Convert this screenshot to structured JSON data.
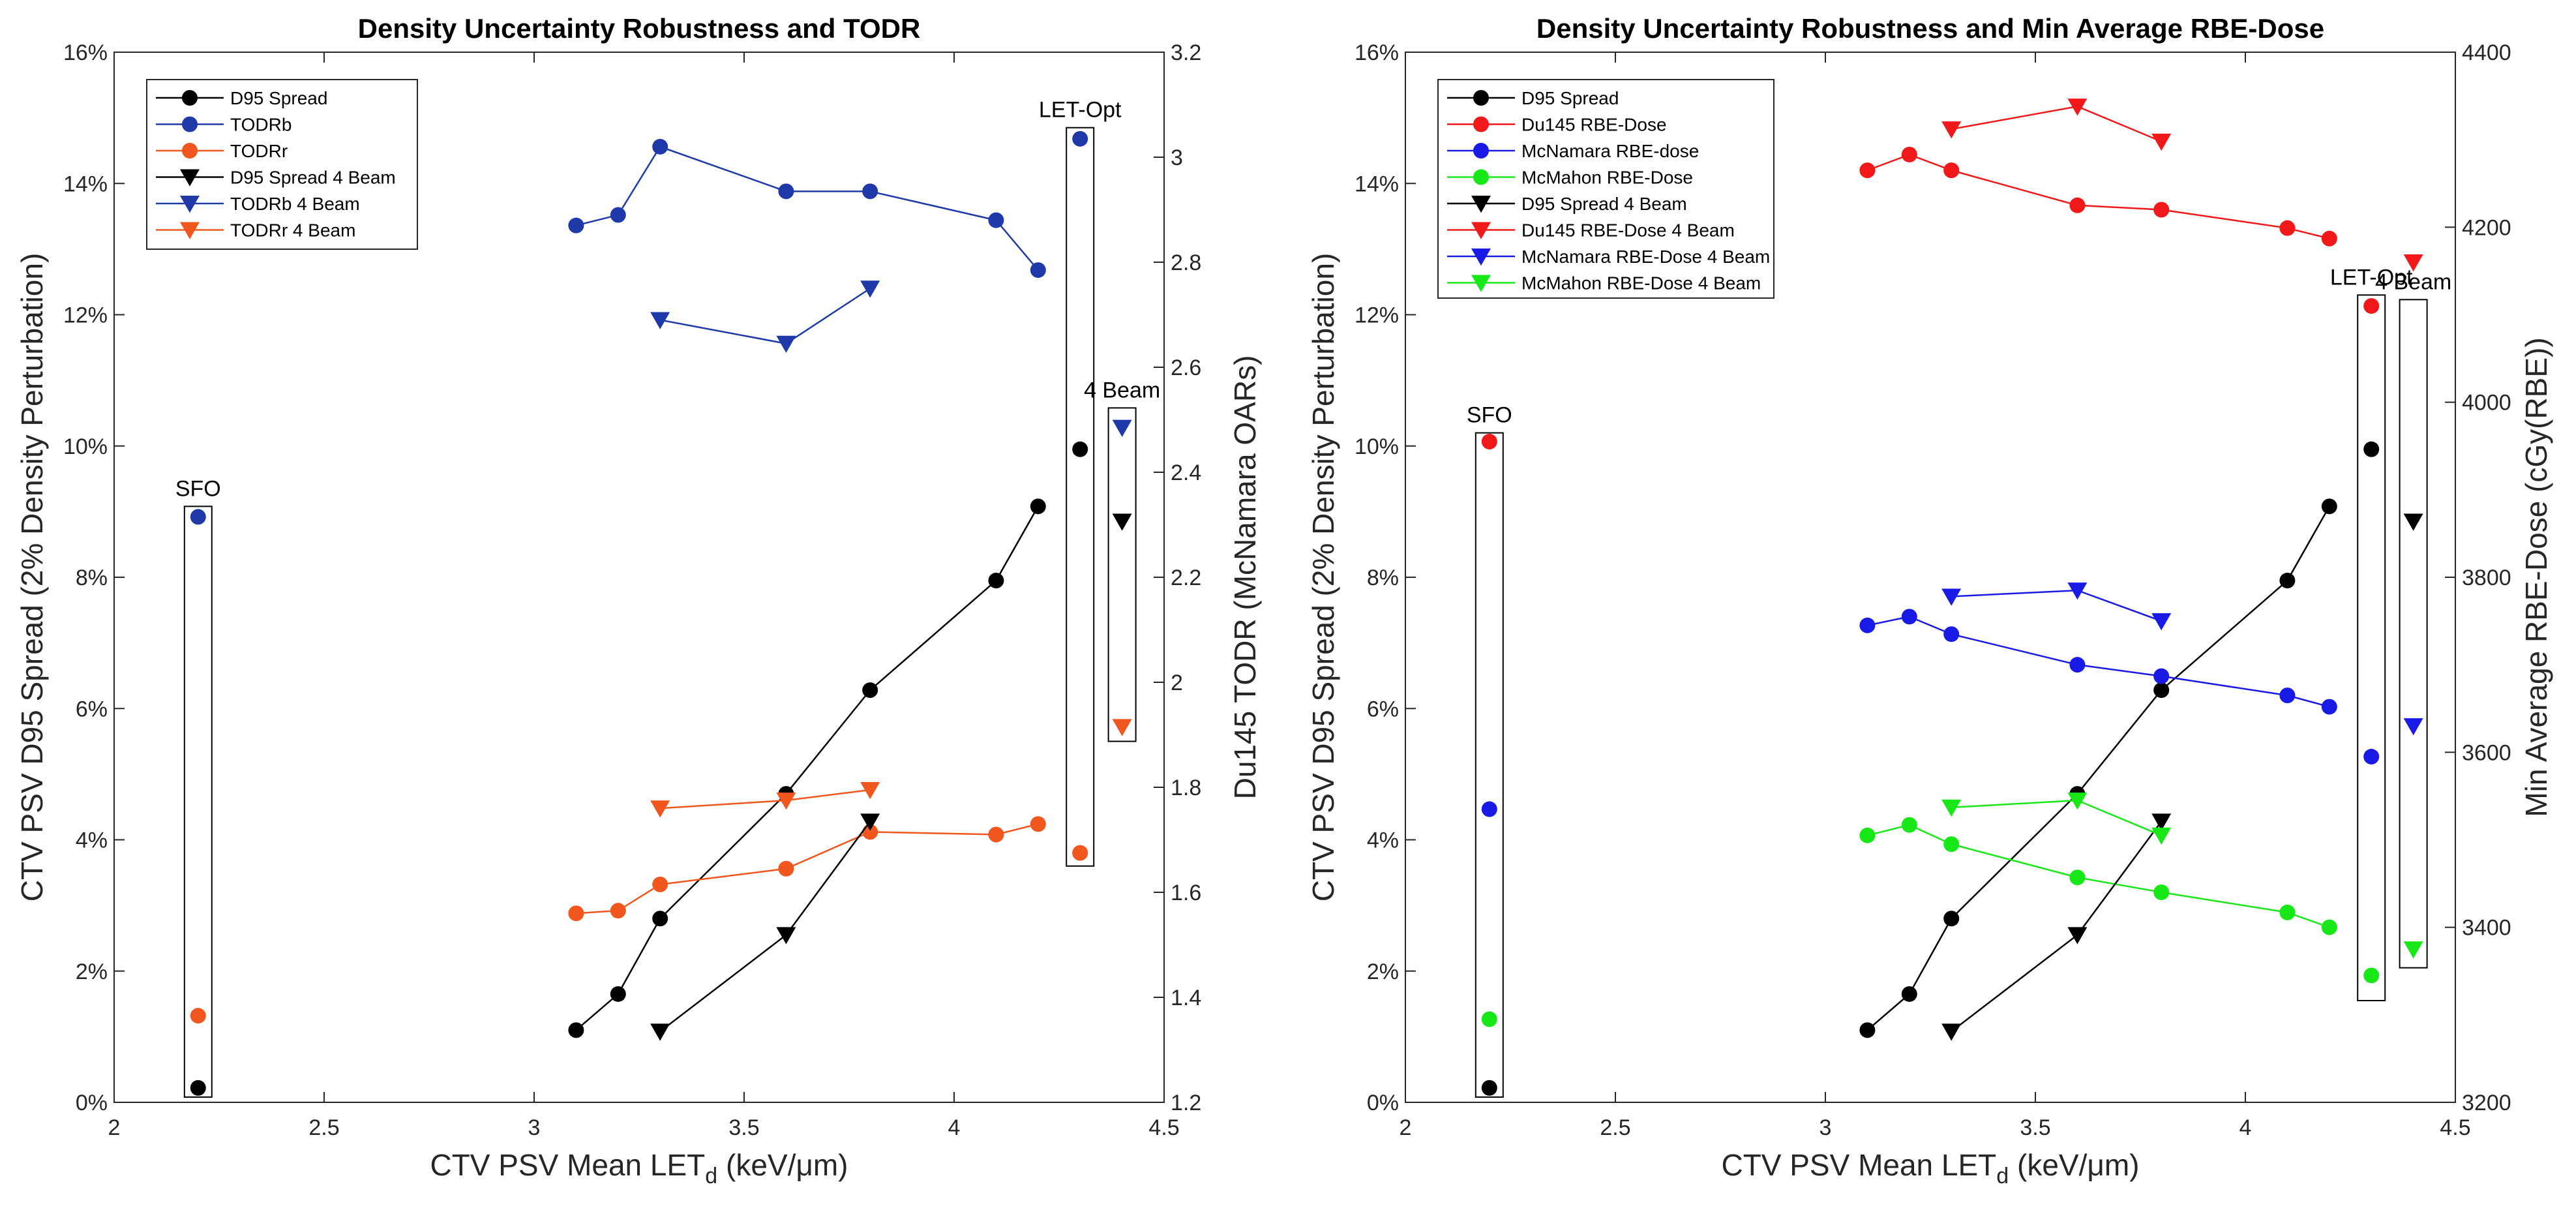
{
  "chart_data": [
    {
      "type": "line",
      "title": "Density Uncertainty Robustness and TODR",
      "xlabel": "CTV PSV Mean LET",
      "xlabel_sub": "d",
      "xlabel_unit": " (keV/μm)",
      "ylabel_left": "CTV PSV D95 Spread (2% Density Perturbation)",
      "ylabel_right": "Du145 TODR (McNamara OARs)",
      "xlim": [
        2,
        4.5
      ],
      "ylim_left": [
        0,
        16
      ],
      "ylim_right": [
        1.2,
        3.2
      ],
      "xticks": [
        2,
        2.5,
        3,
        3.5,
        4,
        4.5
      ],
      "xtick_labels": [
        "2",
        "2.5",
        "3",
        "3.5",
        "4",
        "4.5"
      ],
      "yticks_left": [
        0,
        2,
        4,
        6,
        8,
        10,
        12,
        14,
        16
      ],
      "ytick_labels_left": [
        "0%",
        "2%",
        "4%",
        "6%",
        "8%",
        "10%",
        "12%",
        "14%",
        "16%"
      ],
      "yticks_right": [
        1.2,
        1.4,
        1.6,
        1.8,
        2.0,
        2.2,
        2.4,
        2.6,
        2.8,
        3.0,
        3.2
      ],
      "ytick_labels_right": [
        "1.2",
        "1.4",
        "1.6",
        "1.8",
        "2",
        "2.2",
        "2.4",
        "2.6",
        "2.8",
        "3",
        "3.2"
      ],
      "legend_position": "top-left",
      "series": [
        {
          "name": "D95 Spread",
          "color": "#000000",
          "marker": "circle",
          "axis": "left",
          "x": [
            3.1,
            3.2,
            3.3,
            3.6,
            3.8,
            4.1,
            4.2
          ],
          "y": [
            1.1,
            1.65,
            2.8,
            4.7,
            6.28,
            7.95,
            9.08
          ]
        },
        {
          "name": "TODRb",
          "color": "#1f3aa8",
          "marker": "circle",
          "axis": "right",
          "x": [
            3.1,
            3.2,
            3.3,
            3.6,
            3.8,
            4.1,
            4.2
          ],
          "y": [
            2.87,
            2.89,
            3.02,
            2.935,
            2.935,
            2.88,
            2.785
          ]
        },
        {
          "name": "TODRr",
          "color": "#f0561e",
          "marker": "circle",
          "axis": "right",
          "x": [
            3.1,
            3.2,
            3.3,
            3.6,
            3.8,
            4.1,
            4.2
          ],
          "y": [
            1.56,
            1.565,
            1.615,
            1.645,
            1.715,
            1.71,
            1.73
          ]
        },
        {
          "name": "D95 Spread 4 Beam",
          "color": "#000000",
          "marker": "triangle-down",
          "axis": "left",
          "x": [
            3.3,
            3.6,
            3.8
          ],
          "y": [
            1.08,
            2.55,
            4.28
          ]
        },
        {
          "name": "TODRb 4 Beam",
          "color": "#1f3aa8",
          "marker": "triangle-down",
          "axis": "right",
          "x": [
            3.3,
            3.6,
            3.8
          ],
          "y": [
            2.69,
            2.645,
            2.75
          ]
        },
        {
          "name": "TODRr 4 Beam",
          "color": "#f0561e",
          "marker": "triangle-down",
          "axis": "right",
          "x": [
            3.3,
            3.6,
            3.8
          ],
          "y": [
            1.76,
            1.775,
            1.795
          ]
        }
      ],
      "isolated_points": [
        {
          "group": "SFO",
          "x": 2.2,
          "axis": "left",
          "y": 0.22,
          "color": "#000000",
          "marker": "circle"
        },
        {
          "group": "SFO",
          "x": 2.2,
          "axis": "right",
          "y": 2.315,
          "color": "#1f3aa8",
          "marker": "circle"
        },
        {
          "group": "SFO",
          "x": 2.2,
          "axis": "right",
          "y": 1.365,
          "color": "#f0561e",
          "marker": "circle"
        },
        {
          "group": "LET-Opt",
          "x": 4.3,
          "axis": "left",
          "y": 9.95,
          "color": "#000000",
          "marker": "circle"
        },
        {
          "group": "LET-Opt",
          "x": 4.3,
          "axis": "right",
          "y": 3.035,
          "color": "#1f3aa8",
          "marker": "circle"
        },
        {
          "group": "LET-Opt",
          "x": 4.3,
          "axis": "right",
          "y": 1.675,
          "color": "#f0561e",
          "marker": "circle"
        },
        {
          "group": "4 Beam",
          "x": 4.4,
          "axis": "left",
          "y": 8.85,
          "color": "#000000",
          "marker": "triangle-down"
        },
        {
          "group": "4 Beam",
          "x": 4.4,
          "axis": "right",
          "y": 2.485,
          "color": "#1f3aa8",
          "marker": "triangle-down"
        },
        {
          "group": "4 Beam",
          "x": 4.4,
          "axis": "right",
          "y": 1.915,
          "color": "#f0561e",
          "marker": "triangle-down"
        }
      ],
      "annotations": [
        {
          "text": "SFO",
          "box_x": 2.2,
          "box_y_left": [
            0.08,
            9.08
          ]
        },
        {
          "text": "LET-Opt",
          "box_x": 4.3,
          "box_y_left": [
            3.6,
            14.85
          ]
        },
        {
          "text": "4 Beam",
          "box_x": 4.4,
          "box_y_left": [
            5.5,
            10.58
          ]
        }
      ]
    },
    {
      "type": "line",
      "title": "Density Uncertainty Robustness and Min Average RBE-Dose",
      "xlabel": "CTV PSV Mean LET",
      "xlabel_sub": "d",
      "xlabel_unit": " (keV/μm)",
      "ylabel_left": "CTV PSV D95 Spread (2% Density Perturbation)",
      "ylabel_right": "Min Average RBE-Dose (cGy(RBE))",
      "xlim": [
        2,
        4.5
      ],
      "ylim_left": [
        0,
        16
      ],
      "ylim_right": [
        3200,
        4400
      ],
      "xticks": [
        2,
        2.5,
        3,
        3.5,
        4,
        4.5
      ],
      "xtick_labels": [
        "2",
        "2.5",
        "3",
        "3.5",
        "4",
        "4.5"
      ],
      "yticks_left": [
        0,
        2,
        4,
        6,
        8,
        10,
        12,
        14,
        16
      ],
      "ytick_labels_left": [
        "0%",
        "2%",
        "4%",
        "6%",
        "8%",
        "10%",
        "12%",
        "14%",
        "16%"
      ],
      "yticks_right": [
        3200,
        3400,
        3600,
        3800,
        4000,
        4200,
        4400
      ],
      "ytick_labels_right": [
        "3200",
        "3400",
        "3600",
        "3800",
        "4000",
        "4200",
        "4400"
      ],
      "legend_position": "top-left",
      "series": [
        {
          "name": "D95 Spread",
          "color": "#000000",
          "marker": "circle",
          "axis": "left",
          "x": [
            3.1,
            3.2,
            3.3,
            3.6,
            3.8,
            4.1,
            4.2
          ],
          "y": [
            1.1,
            1.65,
            2.8,
            4.7,
            6.28,
            7.95,
            9.08
          ]
        },
        {
          "name": "Du145 RBE-Dose",
          "color": "#f01818",
          "marker": "circle",
          "axis": "right",
          "x": [
            3.1,
            3.2,
            3.3,
            3.6,
            3.8,
            4.1,
            4.2
          ],
          "y": [
            4265,
            4283,
            4265,
            4225,
            4220,
            4199,
            4187
          ]
        },
        {
          "name": "McNamara RBE-dose",
          "color": "#1a1ae6",
          "marker": "circle",
          "axis": "right",
          "x": [
            3.1,
            3.2,
            3.3,
            3.6,
            3.8,
            4.1,
            4.2
          ],
          "y": [
            3745,
            3755,
            3735,
            3700,
            3687,
            3665,
            3652
          ]
        },
        {
          "name": "McMahon RBE-Dose",
          "color": "#18e818",
          "marker": "circle",
          "axis": "right",
          "x": [
            3.1,
            3.2,
            3.3,
            3.6,
            3.8,
            4.1,
            4.2
          ],
          "y": [
            3505,
            3517,
            3495,
            3457,
            3440,
            3417,
            3400
          ]
        },
        {
          "name": "D95 Spread 4 Beam",
          "color": "#000000",
          "marker": "triangle-down",
          "axis": "left",
          "x": [
            3.3,
            3.6,
            3.8
          ],
          "y": [
            1.08,
            2.55,
            4.28
          ]
        },
        {
          "name": "Du145 RBE-Dose 4 Beam",
          "color": "#f01818",
          "marker": "triangle-down",
          "axis": "right",
          "x": [
            3.3,
            3.6,
            3.8
          ],
          "y": [
            4312,
            4338,
            4298
          ]
        },
        {
          "name": "McNamara RBE-Dose 4 Beam",
          "color": "#1a1ae6",
          "marker": "triangle-down",
          "axis": "right",
          "x": [
            3.3,
            3.6,
            3.8
          ],
          "y": [
            3778,
            3785,
            3750
          ]
        },
        {
          "name": "McMahon RBE-Dose 4 Beam",
          "color": "#18e818",
          "marker": "triangle-down",
          "axis": "right",
          "x": [
            3.3,
            3.6,
            3.8
          ],
          "y": [
            3537,
            3545,
            3505
          ]
        }
      ],
      "isolated_points": [
        {
          "group": "SFO",
          "x": 2.2,
          "axis": "left",
          "y": 0.22,
          "color": "#000000",
          "marker": "circle"
        },
        {
          "group": "SFO",
          "x": 2.2,
          "axis": "right",
          "y": 3955,
          "color": "#f01818",
          "marker": "circle"
        },
        {
          "group": "SFO",
          "x": 2.2,
          "axis": "right",
          "y": 3535,
          "color": "#1a1ae6",
          "marker": "circle"
        },
        {
          "group": "SFO",
          "x": 2.2,
          "axis": "right",
          "y": 3295,
          "color": "#18e818",
          "marker": "circle"
        },
        {
          "group": "LET-Opt",
          "x": 4.3,
          "axis": "left",
          "y": 9.95,
          "color": "#000000",
          "marker": "circle"
        },
        {
          "group": "LET-Opt",
          "x": 4.3,
          "axis": "right",
          "y": 4110,
          "color": "#f01818",
          "marker": "circle"
        },
        {
          "group": "LET-Opt",
          "x": 4.3,
          "axis": "right",
          "y": 3595,
          "color": "#1a1ae6",
          "marker": "circle"
        },
        {
          "group": "LET-Opt",
          "x": 4.3,
          "axis": "right",
          "y": 3345,
          "color": "#18e818",
          "marker": "circle"
        },
        {
          "group": "4 Beam",
          "x": 4.4,
          "axis": "left",
          "y": 8.85,
          "color": "#000000",
          "marker": "triangle-down"
        },
        {
          "group": "4 Beam",
          "x": 4.4,
          "axis": "right",
          "y": 4160,
          "color": "#f01818",
          "marker": "triangle-down"
        },
        {
          "group": "4 Beam",
          "x": 4.4,
          "axis": "right",
          "y": 3630,
          "color": "#1a1ae6",
          "marker": "triangle-down"
        },
        {
          "group": "4 Beam",
          "x": 4.4,
          "axis": "right",
          "y": 3375,
          "color": "#18e818",
          "marker": "triangle-down"
        }
      ],
      "annotations": [
        {
          "text": "SFO",
          "box_x": 2.2,
          "box_y_left": [
            0.08,
            10.2
          ]
        },
        {
          "text": "LET-Opt",
          "box_x": 4.3,
          "box_y_left": [
            1.55,
            12.3
          ]
        },
        {
          "text": "4 Beam",
          "box_x": 4.4,
          "box_y_left": [
            2.05,
            12.23
          ]
        }
      ]
    }
  ]
}
